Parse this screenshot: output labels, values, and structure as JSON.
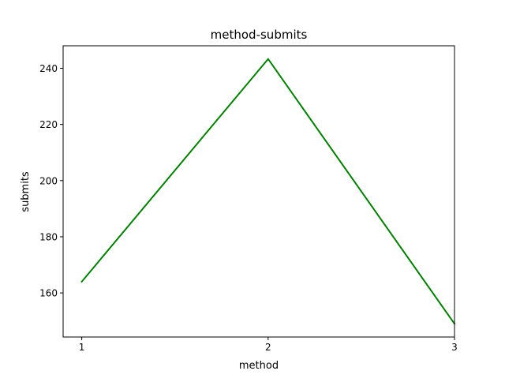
{
  "chart_data": {
    "type": "line",
    "title": "method-submits",
    "xlabel": "method",
    "ylabel": "submits",
    "x": [
      1,
      2,
      3
    ],
    "series": [
      {
        "values": [
          164,
          243.3,
          149
        ],
        "color": "#008000"
      }
    ],
    "xlim": [
      0.9,
      3.0
    ],
    "ylim": [
      144.3,
      248.0
    ],
    "xticks": [
      1,
      2,
      3
    ],
    "xtick_labels": [
      "1",
      "2",
      "3"
    ],
    "yticks": [
      160,
      180,
      200,
      220,
      240
    ],
    "ytick_labels": [
      "160",
      "180",
      "200",
      "220",
      "240"
    ],
    "grid": false,
    "legend": "none"
  }
}
